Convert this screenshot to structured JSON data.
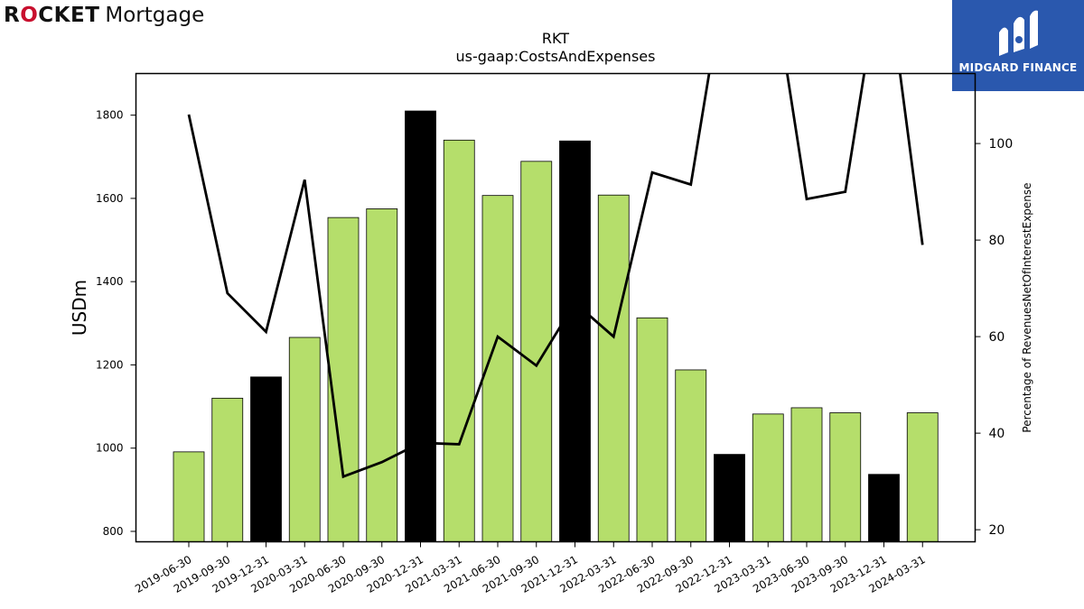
{
  "branding": {
    "left_logo_bold": "R",
    "left_logo_bold_o": "O",
    "left_logo_bold_rest": "CKET",
    "left_logo_light": "Mortgage",
    "right_logo_text": "MIDGARD FINANCE",
    "right_logo_bg": "#2a58ae"
  },
  "chart_data": {
    "type": "bar",
    "title": "RKT",
    "subtitle": "us-gaap:CostsAndExpenses",
    "ylabel": "USDm",
    "y2label": "Percentage of RevenuesNetOfInterestExpense",
    "ylim": [
      775,
      1900
    ],
    "y2lim": [
      17.5,
      114.5
    ],
    "yticks": [
      800,
      1000,
      1200,
      1400,
      1600,
      1800
    ],
    "y2ticks": [
      20,
      40,
      60,
      80,
      100
    ],
    "grid": false,
    "categories": [
      "2019-06-30",
      "2019-09-30",
      "2019-12-31",
      "2020-03-31",
      "2020-06-30",
      "2020-09-30",
      "2020-12-31",
      "2021-03-31",
      "2021-06-30",
      "2021-09-30",
      "2021-12-31",
      "2022-03-31",
      "2022-06-30",
      "2022-09-30",
      "2022-12-31",
      "2023-03-31",
      "2023-06-30",
      "2023-09-30",
      "2023-12-31",
      "2024-03-31"
    ],
    "series": [
      {
        "type": "bar",
        "values": [
          991,
          1120,
          1171,
          1266,
          1554,
          1575,
          1810,
          1740,
          1607,
          1689,
          1738,
          1608,
          1313,
          1188,
          985,
          1082,
          1097,
          1085,
          937,
          1085
        ],
        "colors": [
          "#b5de6b",
          "#b5de6b",
          "#000000",
          "#b5de6b",
          "#b5de6b",
          "#b5de6b",
          "#000000",
          "#b5de6b",
          "#b5de6b",
          "#b5de6b",
          "#000000",
          "#b5de6b",
          "#b5de6b",
          "#b5de6b",
          "#000000",
          "#b5de6b",
          "#b5de6b",
          "#b5de6b",
          "#000000",
          "#b5de6b"
        ]
      },
      {
        "type": "line",
        "axis": "right",
        "color": "#000000",
        "values": [
          106,
          69,
          61,
          92.5,
          31,
          34,
          38,
          37.7,
          60,
          54,
          67,
          60,
          94,
          91.5,
          140,
          140,
          88.5,
          90,
          140,
          79
        ]
      }
    ]
  }
}
